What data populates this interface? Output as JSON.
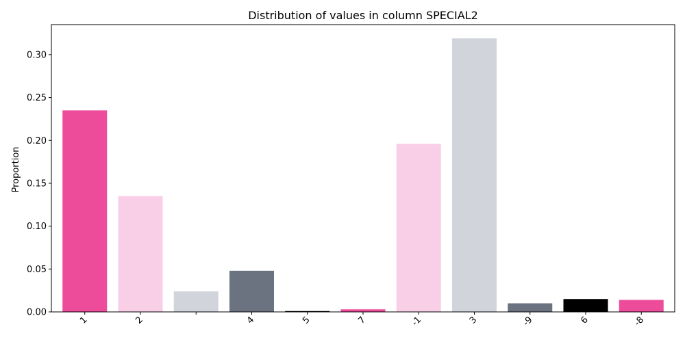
{
  "chart_data": {
    "type": "bar",
    "title": "Distribution of values in column SPECIAL2",
    "xlabel": "",
    "ylabel": "Proportion",
    "categories": [
      "1",
      "2",
      "",
      "4",
      "5",
      "7",
      "-1",
      "3",
      "-9",
      "6",
      "-8"
    ],
    "values": [
      0.235,
      0.135,
      0.024,
      0.048,
      0.001,
      0.003,
      0.196,
      0.319,
      0.01,
      0.015,
      0.014
    ],
    "colors": [
      "#ec4c9a",
      "#f9cfe7",
      "#d1d5db",
      "#6b7280",
      "#000000",
      "#ec4c9a",
      "#f9cfe7",
      "#d1d5db",
      "#6b7280",
      "#000000",
      "#ec4c9a"
    ],
    "ylim": [
      0,
      0.335
    ],
    "yticks": [
      0.0,
      0.05,
      0.1,
      0.15,
      0.2,
      0.25,
      0.3
    ],
    "ytick_labels": [
      "0.00",
      "0.05",
      "0.10",
      "0.15",
      "0.20",
      "0.25",
      "0.30"
    ],
    "grid": false,
    "legend": "none"
  }
}
